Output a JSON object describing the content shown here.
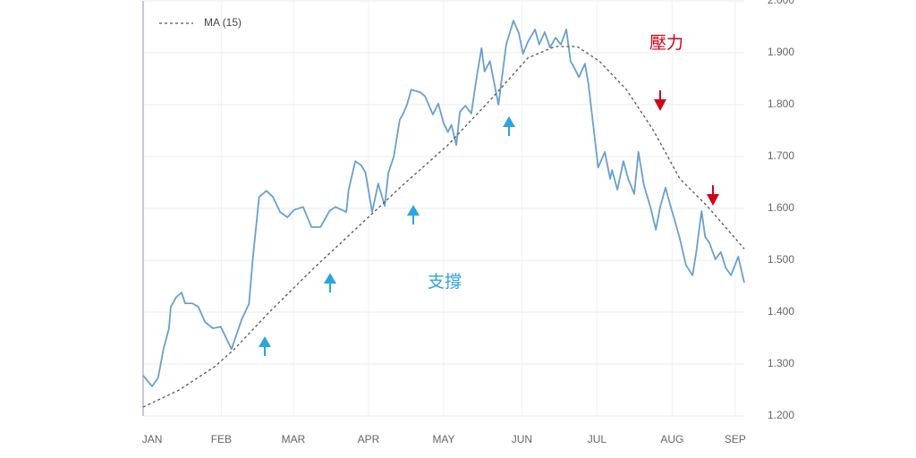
{
  "chart_data": {
    "type": "line",
    "annotations": [
      {
        "text": "壓力",
        "color": "#d0021b"
      },
      {
        "text": "支撐",
        "color": "#2ea3dd"
      }
    ],
    "xlim": [
      0,
      100
    ],
    "xticks": [
      {
        "value": 1.5,
        "label": "JAN"
      },
      {
        "value": 13,
        "label": "FEB"
      },
      {
        "value": 25,
        "label": "MAR"
      },
      {
        "value": 37.5,
        "label": "APR"
      },
      {
        "value": 50,
        "label": "MAY"
      },
      {
        "value": 63,
        "label": "JUN"
      },
      {
        "value": 75.5,
        "label": "JUL"
      },
      {
        "value": 88,
        "label": "AUG"
      },
      {
        "value": 98.5,
        "label": "SEP"
      }
    ],
    "ylim": [
      1.2,
      2.0
    ],
    "yticks": [
      {
        "value": 1.2,
        "label": "1.200"
      },
      {
        "value": 1.3,
        "label": "1.300"
      },
      {
        "value": 1.4,
        "label": "1.400"
      },
      {
        "value": 1.5,
        "label": "1.500"
      },
      {
        "value": 1.6,
        "label": "1.600"
      },
      {
        "value": 1.7,
        "label": "1.700"
      },
      {
        "value": 1.8,
        "label": "1.800"
      },
      {
        "value": 1.9,
        "label": "1.900"
      },
      {
        "value": 2.0,
        "label": "2.000"
      }
    ],
    "grid": true,
    "series": [
      {
        "color": "#6a9fcf",
        "dashed": false,
        "x": [
          0,
          1.5,
          2.5,
          3.4,
          4.3,
          4.6,
          5.5,
          6.4,
          7,
          8.2,
          9.2,
          10.3,
          11.6,
          12.9,
          14.7,
          16.4,
          17.6,
          18.3,
          19.3,
          20.5,
          21.6,
          22.8,
          24,
          25.1,
          26.6,
          28,
          29.5,
          31,
          32,
          33.8,
          34.2,
          35.3,
          36.3,
          37,
          38.1,
          39.1,
          40.2,
          40.8,
          41.7,
          42.7,
          43.2,
          43.9,
          44.6,
          46.1,
          46.9,
          48.2,
          49.1,
          50,
          50.7,
          51.3,
          52.1,
          52.7,
          53.6,
          54.6,
          55.4,
          56.3,
          56.8,
          57.7,
          59.1,
          60.4,
          61.6,
          62.5,
          63.2,
          64,
          65.2,
          65.9,
          66.8,
          67.7,
          68.6,
          69.5,
          70.4,
          71.1,
          71.9,
          72.5,
          73.5,
          74.1,
          74.7,
          75.7,
          76.8,
          77.7,
          78,
          78.9,
          79.9,
          80.7,
          81.7,
          82.4,
          83.3,
          84.4,
          85.3,
          86,
          86.9,
          87.8,
          88.4,
          89.3,
          90.3,
          91.4,
          92,
          92.9,
          93.5,
          94.2,
          95.2,
          96.1,
          96.9,
          97.8,
          99,
          100
        ],
        "values": [
          1.278,
          1.257,
          1.274,
          1.329,
          1.369,
          1.41,
          1.429,
          1.438,
          1.417,
          1.417,
          1.41,
          1.381,
          1.369,
          1.372,
          1.329,
          1.386,
          1.416,
          1.51,
          1.622,
          1.634,
          1.622,
          1.593,
          1.583,
          1.597,
          1.603,
          1.564,
          1.564,
          1.595,
          1.603,
          1.593,
          1.636,
          1.691,
          1.683,
          1.669,
          1.593,
          1.648,
          1.605,
          1.669,
          1.7,
          1.771,
          1.781,
          1.8,
          1.829,
          1.824,
          1.816,
          1.781,
          1.802,
          1.764,
          1.747,
          1.761,
          1.722,
          1.786,
          1.798,
          1.783,
          1.847,
          1.909,
          1.864,
          1.884,
          1.8,
          1.916,
          1.962,
          1.938,
          1.898,
          1.921,
          1.945,
          1.916,
          1.94,
          1.91,
          1.929,
          1.916,
          1.945,
          1.884,
          1.867,
          1.853,
          1.879,
          1.838,
          1.778,
          1.679,
          1.709,
          1.657,
          1.674,
          1.636,
          1.691,
          1.657,
          1.628,
          1.709,
          1.645,
          1.602,
          1.559,
          1.602,
          1.64,
          1.602,
          1.579,
          1.541,
          1.491,
          1.471,
          1.514,
          1.595,
          1.545,
          1.534,
          1.502,
          1.516,
          1.486,
          1.471,
          1.507,
          1.457
        ]
      },
      {
        "name": "MA (15)",
        "color": "#555555",
        "dashed": true,
        "x": [
          0,
          6,
          11.9,
          15.2,
          20.8,
          28.3,
          35.7,
          43.2,
          50.6,
          58,
          64,
          68.5,
          72.2,
          75.9,
          80.4,
          84.8,
          89.3,
          93.8,
          100
        ],
        "values": [
          1.217,
          1.25,
          1.295,
          1.329,
          1.398,
          1.484,
          1.564,
          1.645,
          1.721,
          1.812,
          1.89,
          1.912,
          1.912,
          1.884,
          1.829,
          1.752,
          1.657,
          1.605,
          1.522
        ]
      }
    ]
  }
}
